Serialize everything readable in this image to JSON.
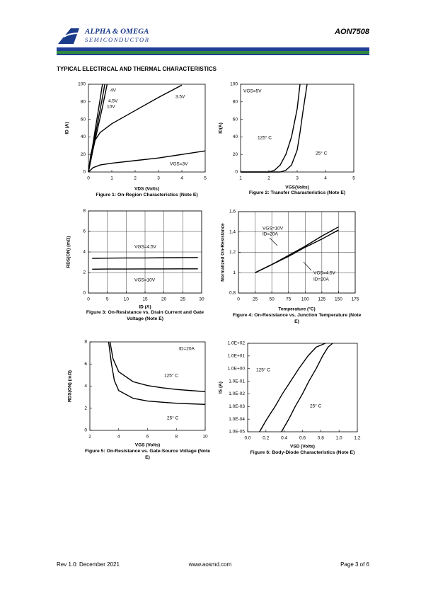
{
  "header": {
    "company": "ALPHA & OMEGA",
    "division": "SEMICONDUCTOR",
    "part": "AON7508",
    "section": "TYPICAL ELECTRICAL AND THERMAL CHARACTERISTICS"
  },
  "chart_data": [
    {
      "type": "line",
      "title": "Figure 1: On-Region Characteristics (Note E)",
      "x_label": "VDS (Volts)",
      "y_label": "ID (A)",
      "xlim": [
        0,
        5
      ],
      "ylim": [
        0,
        100
      ],
      "xticks": [
        0,
        1,
        2,
        3,
        4,
        5
      ],
      "yticks": [
        0,
        20,
        40,
        60,
        80,
        100
      ],
      "grid": false,
      "series": [
        {
          "name": "10V",
          "color": "#000000",
          "x": [
            0,
            0.1,
            0.2,
            0.3,
            0.4,
            0.5,
            0.6
          ],
          "values": [
            0,
            17,
            33,
            50,
            66,
            83,
            100
          ]
        },
        {
          "name": "4.5V",
          "color": "#000000",
          "x": [
            0,
            0.1,
            0.2,
            0.3,
            0.4,
            0.5,
            0.6,
            0.7
          ],
          "values": [
            0,
            15,
            29,
            43,
            57,
            71,
            85,
            100
          ]
        },
        {
          "name": "4V",
          "color": "#000000",
          "x": [
            0,
            0.1,
            0.2,
            0.3,
            0.4,
            0.5,
            0.6,
            0.7,
            0.8
          ],
          "values": [
            0,
            13,
            26,
            38,
            50,
            62,
            74,
            87,
            100
          ]
        },
        {
          "name": "3.5V",
          "color": "#000000",
          "x": [
            0,
            0.1,
            0.25,
            0.5,
            1,
            2,
            3,
            4
          ],
          "values": [
            0,
            20,
            35,
            45,
            55,
            70,
            85,
            99
          ]
        },
        {
          "name": "VGS=3V",
          "color": "#000000",
          "x": [
            0,
            0.2,
            0.5,
            1,
            2,
            3,
            4,
            5
          ],
          "values": [
            0,
            5,
            8,
            10,
            13,
            16,
            20,
            24
          ]
        }
      ],
      "annotations": []
    },
    {
      "type": "line",
      "title": "Figure 2: Transfer Characteristics (Note E)",
      "x_label": "VGS(Volts)",
      "y_label": "ID(A)",
      "xlim": [
        1,
        5
      ],
      "ylim": [
        0,
        100
      ],
      "xticks": [
        1,
        2,
        3,
        4,
        5
      ],
      "yticks": [
        0,
        20,
        40,
        60,
        80,
        100
      ],
      "grid": false,
      "series": [
        {
          "name": "125° C",
          "color": "#000000",
          "x": [
            1,
            2,
            2.2,
            2.4,
            2.6,
            2.8,
            3.0,
            3.1
          ],
          "values": [
            0,
            0,
            2,
            8,
            20,
            40,
            72,
            100
          ]
        },
        {
          "name": "25° C",
          "color": "#000000",
          "x": [
            1,
            2.4,
            2.6,
            2.8,
            3.0,
            3.1,
            3.2,
            3.35
          ],
          "values": [
            0,
            0,
            2,
            8,
            25,
            45,
            68,
            100
          ]
        }
      ],
      "annotations": [
        "VGS=5V"
      ]
    },
    {
      "type": "line",
      "title": "Figure 3: On-Resistance vs. Drain Current and Gate Voltage (Note E)",
      "x_label": "ID (A)",
      "y_label": "RDS(ON) (mΩ)",
      "xlim": [
        0,
        30
      ],
      "ylim": [
        0,
        8
      ],
      "xticks": [
        0,
        5,
        10,
        15,
        20,
        25,
        30
      ],
      "yticks": [
        0,
        2,
        4,
        6,
        8
      ],
      "grid": true,
      "series": [
        {
          "name": "VGS=4.5V",
          "color": "#000000",
          "x": [
            1,
            5,
            10,
            15,
            20,
            25,
            29
          ],
          "values": [
            3.38,
            3.4,
            3.42,
            3.42,
            3.44,
            3.45,
            3.46
          ]
        },
        {
          "name": "VGS=10V",
          "color": "#000000",
          "x": [
            1,
            5,
            10,
            15,
            20,
            25,
            29
          ],
          "values": [
            2.32,
            2.34,
            2.34,
            2.35,
            2.35,
            2.36,
            2.36
          ]
        }
      ],
      "annotations": []
    },
    {
      "type": "line",
      "title": "Figure 4: On-Resistance vs. Junction Temperature (Note E)",
      "x_label": "Temperature (°C)",
      "y_label": "Normalized On-Resistance",
      "xlim": [
        0,
        175
      ],
      "ylim": [
        0.8,
        1.6
      ],
      "xticks": [
        0,
        25,
        50,
        75,
        100,
        125,
        150,
        175
      ],
      "yticks": [
        0.8,
        1,
        1.2,
        1.4,
        1.6
      ],
      "grid": true,
      "series": [
        {
          "name": "VGS=10V",
          "color": "#000000",
          "x": [
            25,
            50,
            75,
            100,
            125,
            150
          ],
          "values": [
            1,
            1.08,
            1.17,
            1.26,
            1.36,
            1.45
          ]
        },
        {
          "name": "VGS=4.5V",
          "color": "#000000",
          "x": [
            25,
            50,
            75,
            100,
            125,
            150
          ],
          "values": [
            1,
            1.08,
            1.16,
            1.25,
            1.33,
            1.42
          ]
        }
      ],
      "annotations": [
        "ID=20A",
        "ID=20A"
      ]
    },
    {
      "type": "line",
      "title": "Figure 5: On-Resistance vs. Gate-Source Voltage (Note E)",
      "x_label": "VGS (Volts)",
      "y_label": "RDS(ON) (mΩ)",
      "xlim": [
        2,
        10
      ],
      "ylim": [
        0,
        8
      ],
      "xticks": [
        2,
        4,
        6,
        8,
        10
      ],
      "yticks": [
        0,
        2,
        4,
        6,
        8
      ],
      "grid": false,
      "series": [
        {
          "name": "125° C",
          "color": "#000000",
          "x": [
            3.4,
            3.6,
            4,
            5,
            6,
            7,
            8,
            9,
            10
          ],
          "values": [
            8,
            6.5,
            5.3,
            4.4,
            4.05,
            3.85,
            3.7,
            3.6,
            3.5
          ]
        },
        {
          "name": "25° C",
          "color": "#000000",
          "x": [
            3.3,
            3.5,
            3.7,
            4,
            5,
            6,
            7,
            8,
            9,
            10
          ],
          "values": [
            8,
            6,
            4.5,
            3.6,
            2.9,
            2.65,
            2.55,
            2.45,
            2.4,
            2.35
          ]
        }
      ],
      "annotations": [
        "ID=20A"
      ]
    },
    {
      "type": "line",
      "title": "Figure 6: Body-Diode Characteristics (Note E)",
      "x_label": "VSD (Volts)",
      "y_label": "IS (A)",
      "log_y": true,
      "xlim": [
        0,
        1.2
      ],
      "ylim": [
        1e-05,
        100
      ],
      "xticks": [
        {
          "value": 0,
          "label": "0.0"
        },
        0.2,
        0.4,
        0.6,
        0.8,
        {
          "value": 1,
          "label": "1.0"
        },
        1.2
      ],
      "yticks": [
        {
          "value": 1e-05,
          "label": "1.0E-05"
        },
        {
          "value": 0.0001,
          "label": "1.0E-04"
        },
        {
          "value": 0.001,
          "label": "1.0E-03"
        },
        {
          "value": 0.01,
          "label": "1.0E-02"
        },
        {
          "value": 0.1,
          "label": "1.0E-01"
        },
        {
          "value": 1,
          "label": "1.0E+00"
        },
        {
          "value": 10,
          "label": "1.0E+01"
        },
        {
          "value": 100,
          "label": "1.0E+02"
        }
      ],
      "grid": false,
      "series": [
        {
          "name": "125° C",
          "color": "#000000",
          "x": [
            0.13,
            0.21,
            0.3,
            0.38,
            0.47,
            0.56,
            0.66,
            0.75,
            0.85
          ],
          "values": [
            1e-05,
            0.0001,
            0.001,
            0.01,
            0.1,
            1,
            10,
            50,
            100
          ]
        },
        {
          "name": "25° C",
          "color": "#000000",
          "x": [
            0.37,
            0.45,
            0.52,
            0.6,
            0.67,
            0.75,
            0.82,
            0.88,
            0.93
          ],
          "values": [
            1e-05,
            0.0001,
            0.001,
            0.01,
            0.1,
            1,
            10,
            50,
            100
          ]
        }
      ],
      "annotations": []
    }
  ],
  "footer": {
    "revision": "Rev 1.0: December 2021",
    "website": "www.aosmd.com",
    "page": "Page 3 of 6"
  }
}
